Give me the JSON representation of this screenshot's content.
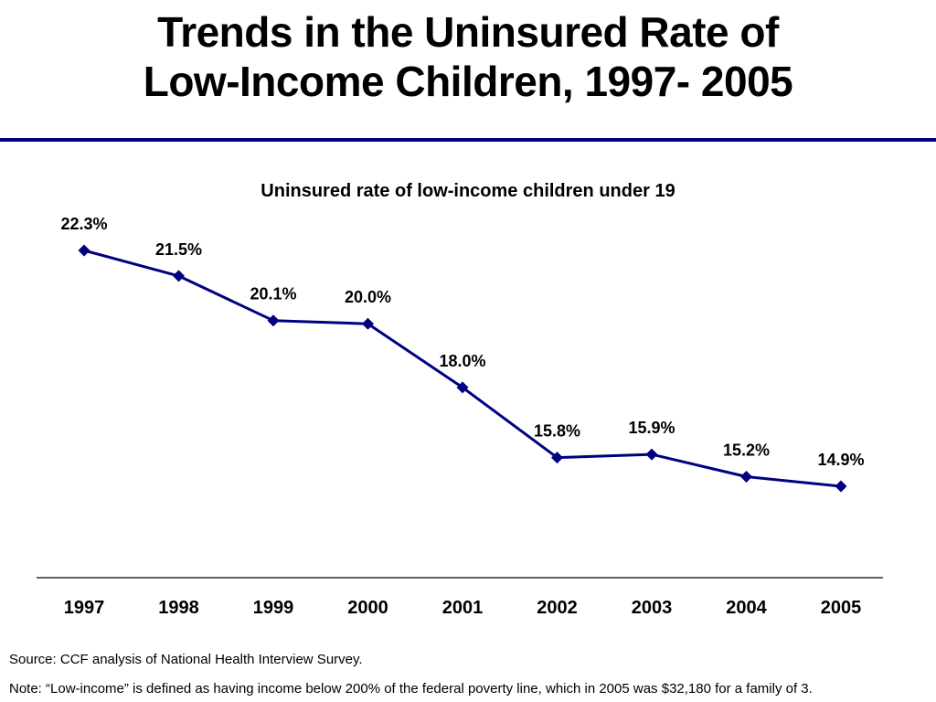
{
  "slide": {
    "title_line1": "Trends in the Uninsured Rate of",
    "title_line2": "Low-Income Children, 1997- 2005",
    "source": "Source: CCF analysis of National Health Interview Survey.",
    "note": "Note: “Low-income” is defined as having income below 200% of the federal poverty line, which in 2005 was $32,180 for a family of 3."
  },
  "colors": {
    "accent": "#000080",
    "text": "#000000",
    "axis": "#000000"
  },
  "chart_data": {
    "type": "line",
    "title": "Uninsured rate of low-income children under 19",
    "xlabel": "",
    "ylabel": "",
    "categories": [
      "1997",
      "1998",
      "1999",
      "2000",
      "2001",
      "2002",
      "2003",
      "2004",
      "2005"
    ],
    "series": [
      {
        "values": [
          22.3,
          21.5,
          20.1,
          20.0,
          18.0,
          15.8,
          15.9,
          15.2,
          14.9
        ],
        "data_labels": [
          "22.3%",
          "21.5%",
          "20.1%",
          "20.0%",
          "18.0%",
          "15.8%",
          "15.9%",
          "15.2%",
          "14.9%"
        ],
        "marker": "diamond"
      }
    ],
    "ylim": [
      10,
      23.5
    ],
    "grid": false,
    "legend": "none"
  }
}
